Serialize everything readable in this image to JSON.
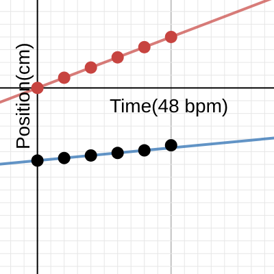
{
  "chart_data": {
    "type": "scatter",
    "title": "",
    "xlabel": "Time(48 bpm)",
    "ylabel": "Position(cm)",
    "xlim": [
      -1.4,
      8.85
    ],
    "ylim": [
      -7.3,
      3.45
    ],
    "grid": true,
    "series": [
      {
        "color": "#c74440",
        "points": [
          {
            "x": 0,
            "y": 0
          },
          {
            "x": 1,
            "y": 0.4
          },
          {
            "x": 2,
            "y": 0.8
          },
          {
            "x": 3,
            "y": 1.2
          },
          {
            "x": 4,
            "y": 1.6
          },
          {
            "x": 5,
            "y": 2.0
          }
        ],
        "trendline": {
          "slope": 0.4,
          "intercept": 0
        }
      },
      {
        "color": "#000000",
        "line_color": "#2d70b3",
        "points": [
          {
            "x": 0,
            "y": -2.85
          },
          {
            "x": 1,
            "y": -2.75
          },
          {
            "x": 2,
            "y": -2.65
          },
          {
            "x": 3,
            "y": -2.55
          },
          {
            "x": 4,
            "y": -2.45
          },
          {
            "x": 5,
            "y": -2.25
          }
        ],
        "trendline": {
          "slope": 0.1,
          "intercept": -2.85
        }
      }
    ]
  }
}
